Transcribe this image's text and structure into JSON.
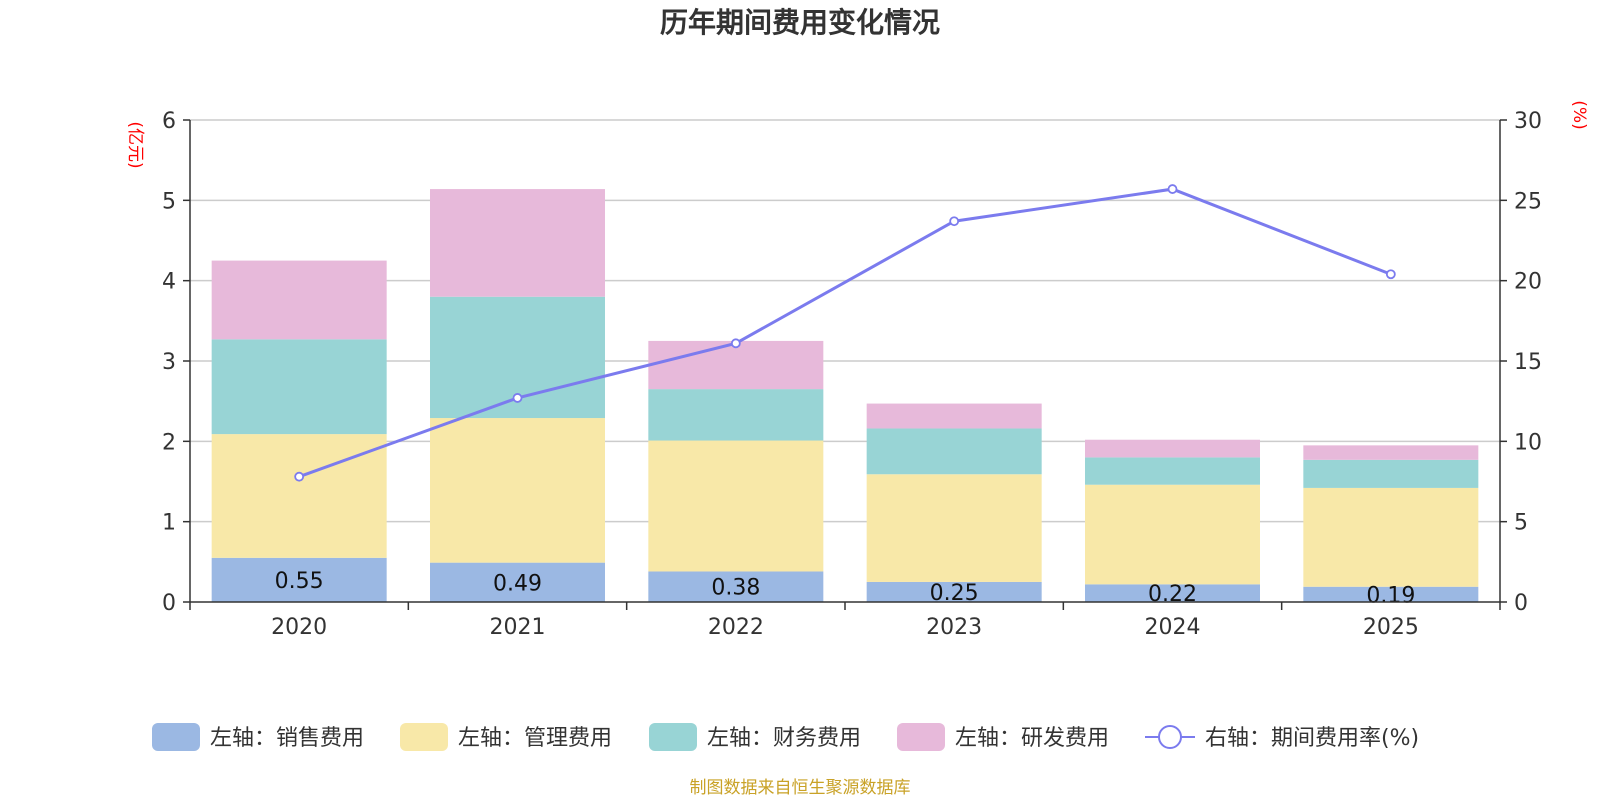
{
  "chart_data": {
    "type": "bar",
    "title": "历年期间费用变化情况",
    "categories": [
      "2020",
      "2021",
      "2022",
      "2023",
      "2024",
      "2025"
    ],
    "left_axis": {
      "unit": "(亿元)",
      "ylim": [
        0,
        6
      ],
      "ticks": [
        "0",
        "1",
        "2",
        "3",
        "4",
        "5",
        "6"
      ]
    },
    "right_axis": {
      "unit": "(%)",
      "ylim": [
        0,
        30
      ],
      "ticks": [
        "0",
        "5",
        "10",
        "15",
        "20",
        "25",
        "30"
      ]
    },
    "series": [
      {
        "name": "左轴：销售费用",
        "type": "bar",
        "axis": "left",
        "color": "#9bb8e3",
        "values": [
          0.55,
          0.49,
          0.38,
          0.25,
          0.22,
          0.19
        ],
        "labels": [
          "0.55",
          "0.49",
          "0.38",
          "0.25",
          "0.22",
          "0.19"
        ]
      },
      {
        "name": "左轴：管理费用",
        "type": "bar",
        "axis": "left",
        "color": "#f8e8a8",
        "values": [
          1.54,
          1.8,
          1.63,
          1.34,
          1.24,
          1.23
        ]
      },
      {
        "name": "左轴：财务费用",
        "type": "bar",
        "axis": "left",
        "color": "#98d4d5",
        "values": [
          1.18,
          1.51,
          0.64,
          0.57,
          0.34,
          0.35
        ]
      },
      {
        "name": "左轴：研发费用",
        "type": "bar",
        "axis": "left",
        "color": "#e7b9da",
        "values": [
          0.98,
          1.34,
          0.6,
          0.31,
          0.22,
          0.18
        ]
      },
      {
        "name": "右轴：期间费用率(%)",
        "type": "line",
        "axis": "right",
        "color": "#7b7bee",
        "values": [
          7.8,
          12.7,
          16.1,
          23.7,
          25.7,
          20.4
        ]
      }
    ],
    "source": "制图数据来自恒生聚源数据库",
    "grid": true,
    "legend": "bottom"
  }
}
